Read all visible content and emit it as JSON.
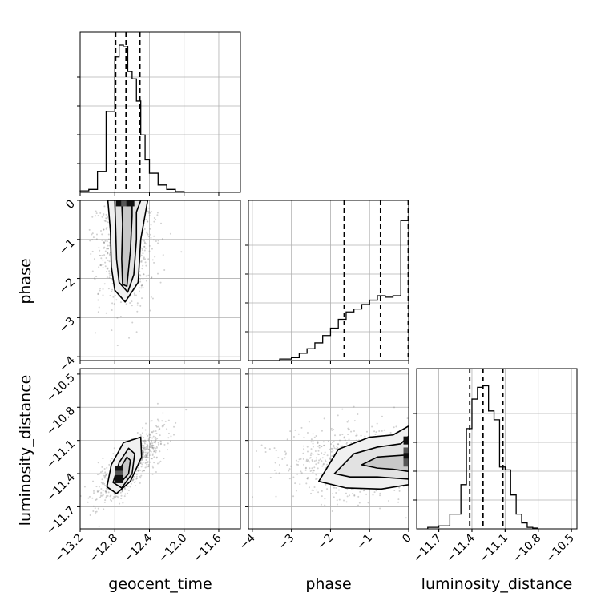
{
  "chart_data": {
    "type": "corner",
    "parameters": [
      "geocent_time",
      "phase",
      "luminosity_distance"
    ],
    "axis_labels": {
      "geocent_time": "geocent_time",
      "phase": "phase",
      "luminosity_distance": "luminosity_distance"
    },
    "ranges": {
      "geocent_time": [
        -13.2,
        -11.35
      ],
      "phase": [
        -4.1,
        0.0
      ],
      "luminosity_distance": [
        -11.9,
        -10.45
      ]
    },
    "ticks": {
      "geocent_time": [
        "−13.2",
        "−12.8",
        "−12.4",
        "−12.0",
        "−11.6"
      ],
      "geocent_time_values": [
        -13.2,
        -12.8,
        -12.4,
        -12.0,
        -11.6
      ],
      "phase": [
        "−4",
        "−3",
        "−2",
        "−1",
        "0"
      ],
      "phase_values": [
        -4,
        -3,
        -2,
        -1,
        0
      ],
      "luminosity_distance": [
        "−11.7",
        "−11.4",
        "−11.1",
        "−10.8",
        "−10.5"
      ],
      "luminosity_distance_values": [
        -11.7,
        -11.4,
        -11.1,
        -10.8,
        -10.5
      ]
    },
    "quantiles": {
      "geocent_time": [
        -12.79,
        -12.67,
        -12.51
      ],
      "phase": [
        -1.65,
        -0.72,
        -0.01
      ],
      "luminosity_distance": [
        -11.42,
        -11.3,
        -11.12
      ]
    },
    "histograms": {
      "geocent_time": {
        "bin_edges": [
          -13.2,
          -13.1,
          -13.0,
          -12.9,
          -12.8,
          -12.75,
          -12.7,
          -12.65,
          -12.6,
          -12.55,
          -12.5,
          -12.45,
          -12.4,
          -12.3,
          -12.2,
          -12.1,
          -12.0,
          -11.9
        ],
        "counts": [
          0.01,
          0.02,
          0.14,
          0.55,
          0.92,
          1.0,
          0.99,
          0.82,
          0.77,
          0.62,
          0.39,
          0.22,
          0.13,
          0.05,
          0.02,
          0.005,
          0.002
        ]
      },
      "phase": {
        "bin_edges": [
          -4.0,
          -3.3,
          -3.0,
          -2.8,
          -2.6,
          -2.4,
          -2.2,
          -2.0,
          -1.8,
          -1.6,
          -1.4,
          -1.2,
          -1.0,
          -0.8,
          -0.6,
          -0.4,
          -0.2,
          0.0
        ],
        "counts": [
          0.0,
          0.01,
          0.02,
          0.05,
          0.08,
          0.12,
          0.17,
          0.22,
          0.28,
          0.33,
          0.35,
          0.38,
          0.41,
          0.44,
          0.43,
          0.44,
          0.95
        ]
      },
      "luminosity_distance": {
        "bin_edges": [
          -11.8,
          -11.7,
          -11.6,
          -11.5,
          -11.45,
          -11.4,
          -11.35,
          -11.3,
          -11.25,
          -11.2,
          -11.15,
          -11.1,
          -11.05,
          -11.0,
          -10.95,
          -10.9,
          -10.85,
          -10.8
        ],
        "counts": [
          0.01,
          0.02,
          0.1,
          0.3,
          0.68,
          0.88,
          0.96,
          0.97,
          0.8,
          0.74,
          0.42,
          0.4,
          0.23,
          0.1,
          0.04,
          0.01,
          0.005
        ]
      }
    },
    "density_panels": [
      {
        "x": "geocent_time",
        "y": "phase",
        "scatter_center": [
          -12.68,
          -1.0
        ],
        "contours": [
          [
            [
              -12.72,
              0.0
            ],
            [
              -12.71,
              -0.6
            ],
            [
              -12.72,
              -1.5
            ],
            [
              -12.71,
              -2.15
            ],
            [
              -12.66,
              -2.2
            ],
            [
              -12.62,
              -1.3
            ],
            [
              -12.6,
              -0.4
            ],
            [
              -12.6,
              0.0
            ]
          ],
          [
            [
              -12.8,
              0.0
            ],
            [
              -12.79,
              -0.7
            ],
            [
              -12.78,
              -1.5
            ],
            [
              -12.75,
              -2.1
            ],
            [
              -12.65,
              -2.35
            ],
            [
              -12.58,
              -1.9
            ],
            [
              -12.55,
              -1.0
            ],
            [
              -12.55,
              -0.3
            ],
            [
              -12.5,
              0.0
            ]
          ],
          [
            [
              -12.88,
              0.0
            ],
            [
              -12.85,
              -0.8
            ],
            [
              -12.84,
              -1.7
            ],
            [
              -12.8,
              -2.3
            ],
            [
              -12.68,
              -2.6
            ],
            [
              -12.53,
              -2.1
            ],
            [
              -12.5,
              -1.0
            ],
            [
              -12.42,
              0.0
            ]
          ]
        ],
        "peak_cells": [
          [
            -12.74,
            -0.05
          ],
          [
            -12.68,
            -0.05
          ],
          [
            -12.62,
            -0.05
          ]
        ]
      },
      {
        "x": "geocent_time",
        "y": "luminosity_distance",
        "scatter_center": [
          -12.64,
          -11.33
        ],
        "contours": [
          [
            [
              -12.76,
              -11.44
            ],
            [
              -12.72,
              -11.33
            ],
            [
              -12.66,
              -11.25
            ],
            [
              -12.62,
              -11.28
            ],
            [
              -12.64,
              -11.4
            ],
            [
              -12.72,
              -11.47
            ]
          ],
          [
            [
              -12.82,
              -11.48
            ],
            [
              -12.75,
              -11.3
            ],
            [
              -12.64,
              -11.17
            ],
            [
              -12.57,
              -11.22
            ],
            [
              -12.6,
              -11.4
            ],
            [
              -12.72,
              -11.53
            ]
          ],
          [
            [
              -12.89,
              -11.52
            ],
            [
              -12.84,
              -11.32
            ],
            [
              -12.7,
              -11.12
            ],
            [
              -12.5,
              -11.07
            ],
            [
              -12.49,
              -11.25
            ],
            [
              -12.62,
              -11.47
            ],
            [
              -12.78,
              -11.58
            ]
          ]
        ],
        "peak_cells": [
          [
            -12.75,
            -11.37
          ],
          [
            -12.75,
            -11.41
          ],
          [
            -12.75,
            -11.45
          ]
        ]
      },
      {
        "x": "phase",
        "y": "luminosity_distance",
        "scatter_center": [
          -1.0,
          -11.3
        ],
        "contours": [
          [
            [
              -1.2,
              -11.32
            ],
            [
              -0.8,
              -11.25
            ],
            [
              -0.4,
              -11.24
            ],
            [
              0.0,
              -11.23
            ],
            [
              0.0,
              -11.38
            ],
            [
              -0.4,
              -11.36
            ],
            [
              -0.8,
              -11.35
            ]
          ],
          [
            [
              -1.9,
              -11.4
            ],
            [
              -1.4,
              -11.22
            ],
            [
              -0.8,
              -11.16
            ],
            [
              -0.2,
              -11.13
            ],
            [
              0.0,
              -11.06
            ],
            [
              0.0,
              -11.45
            ],
            [
              -0.8,
              -11.43
            ],
            [
              -1.5,
              -11.43
            ]
          ],
          [
            [
              -2.3,
              -11.47
            ],
            [
              -1.8,
              -11.18
            ],
            [
              -1.0,
              -11.07
            ],
            [
              -0.4,
              -11.05
            ],
            [
              0.0,
              -10.97
            ],
            [
              0.0,
              -11.5
            ],
            [
              -0.7,
              -11.54
            ],
            [
              -1.6,
              -11.53
            ]
          ]
        ],
        "peak_cells": [
          [
            -0.03,
            -11.1
          ],
          [
            -0.03,
            -11.2
          ],
          [
            -0.03,
            -11.25
          ],
          [
            -0.03,
            -11.3
          ]
        ]
      }
    ]
  }
}
